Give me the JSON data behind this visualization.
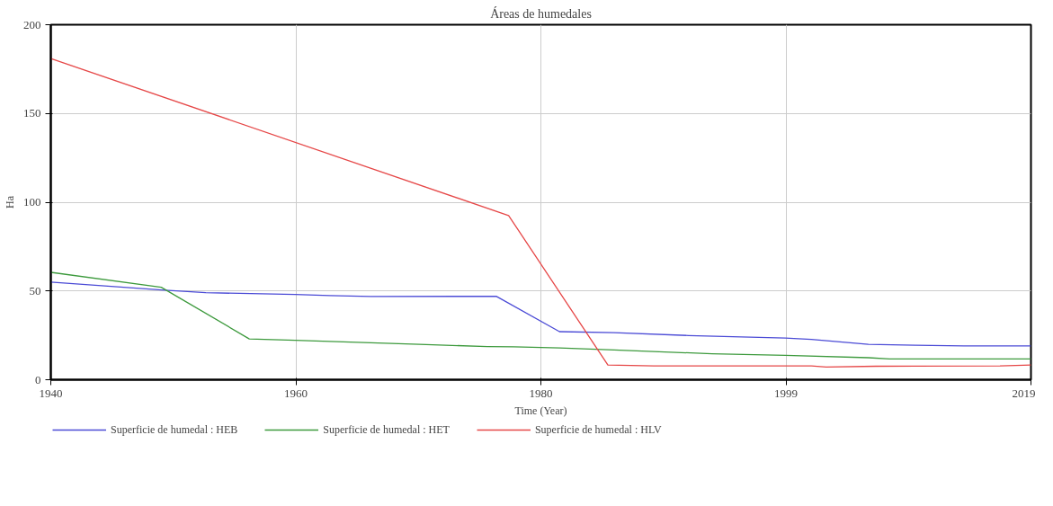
{
  "chart_data": {
    "type": "line",
    "title": "Áreas de humedales",
    "xlabel": "Time (Year)",
    "ylabel": "Ha",
    "xlim": [
      1940,
      2019
    ],
    "xticks": [
      1940,
      {
        "value": 1959.75,
        "label": "1960"
      },
      {
        "value": 1979.5,
        "label": "1980"
      },
      {
        "value": 1999.25,
        "label": "1999"
      },
      2019
    ],
    "ylim": [
      0,
      200
    ],
    "yticks": [
      0,
      50,
      100,
      150,
      200
    ],
    "grid": true,
    "legend": "bottom",
    "line_style": "solid",
    "marker": "none",
    "series": [
      {
        "name": "Superficie de humedal : HEB",
        "color": "#4b4bd6",
        "x": [
          1940,
          1949.2,
          1952.5,
          1959.7,
          1962.5,
          1965.8,
          1975.9,
          1981,
          1985.4,
          1991.4,
          1999.2,
          2001.3,
          2005.9,
          2009.7,
          2013.6,
          2019
        ],
        "values": [
          55,
          50.4,
          49,
          48,
          47.4,
          46.9,
          47,
          27.1,
          26.5,
          24.9,
          23.5,
          22.7,
          19.9,
          19.4,
          19.1,
          19.1
        ]
      },
      {
        "name": "Superficie de humedal : HET",
        "color": "#3d9a3d",
        "x": [
          1940,
          1948.9,
          1956,
          1959.7,
          1969.7,
          1975.2,
          1977.3,
          1981,
          1985.4,
          1993.3,
          1999.2,
          2005.9,
          2007.6,
          2019
        ],
        "values": [
          60.5,
          52.1,
          23,
          22.2,
          19.9,
          18.7,
          18.5,
          17.9,
          16.8,
          14.6,
          13.7,
          12.4,
          11.7,
          11.7
        ]
      },
      {
        "name": "Superficie de humedal : HLV",
        "color": "#e64848",
        "x": [
          1940,
          1976.9,
          1984.9,
          1988.6,
          2001.3,
          2002.5,
          2006.5,
          2016.5,
          2019
        ],
        "values": [
          181,
          92.5,
          8.3,
          7.8,
          7.8,
          7.2,
          7.6,
          7.8,
          8.3
        ]
      }
    ]
  }
}
